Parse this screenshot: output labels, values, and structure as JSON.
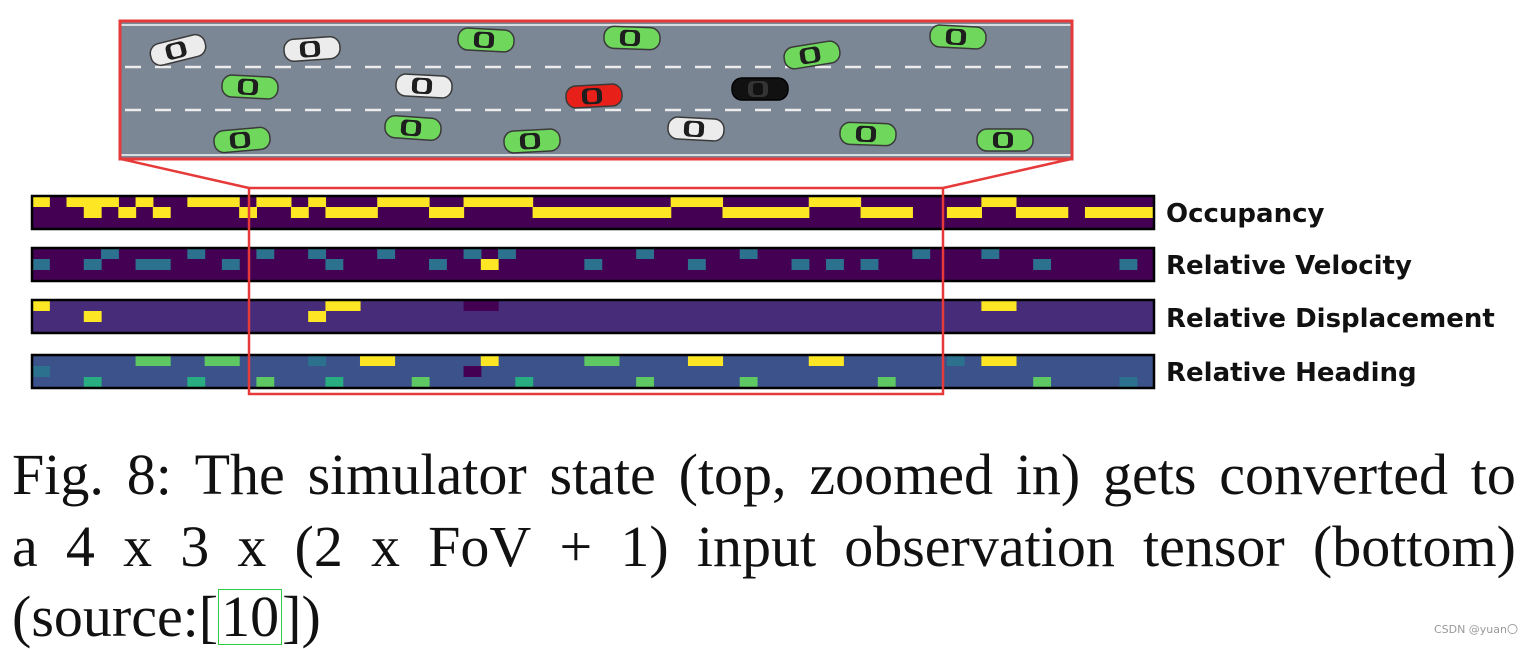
{
  "figure": {
    "rows": [
      {
        "label": "Occupancy"
      },
      {
        "label": "Relative Velocity"
      },
      {
        "label": "Relative Displacement"
      },
      {
        "label": "Relative Heading"
      }
    ],
    "colors": {
      "road": "#7b8794",
      "lane_dash": "#e8e8e8",
      "zoom_box": "#e63a3a",
      "ego_car": "#e8201a",
      "target_car": "#111111",
      "green_car": "#6fd85c",
      "white_car": "#ececec",
      "viridis_dark": "#440154",
      "viridis_purple": "#472c7a",
      "viridis_blue": "#3b528b",
      "viridis_teal": "#2c728e",
      "viridis_green": "#28ae80",
      "viridis_lightgreen": "#5ec962",
      "viridis_yellow": "#fde725"
    }
  },
  "caption": {
    "line1_words": [
      "Fig.",
      "8:",
      "The",
      "simulator",
      "state",
      "(top,",
      "zoomed",
      "in)",
      "gets",
      "converted",
      "to"
    ],
    "line2_words": [
      "a",
      "4",
      "x",
      "3",
      "x",
      "(2",
      "x",
      "FoV",
      "+",
      "1)",
      "input",
      "observation",
      "tensor",
      "(bottom)"
    ],
    "line3_prefix": "(source:[",
    "line3_ref": "10",
    "line3_suffix": "])"
  },
  "watermark": "CSDN @yuan〇"
}
